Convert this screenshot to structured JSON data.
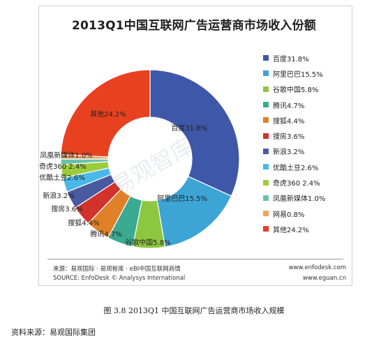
{
  "chart_data": {
    "type": "pie",
    "donut": true,
    "title": "2013Q1中国互联网广告运营商市场收入份额",
    "categories": [
      "百度",
      "阿里巴巴",
      "谷歌中国",
      "腾讯",
      "搜狐",
      "搜房",
      "新浪",
      "优酷土豆",
      "奇虎360",
      "凤凰新媒体",
      "网易",
      "其他"
    ],
    "values": [
      31.8,
      15.5,
      5.8,
      4.7,
      4.4,
      3.6,
      3.2,
      2.6,
      2.4,
      1.0,
      0.8,
      24.2
    ],
    "colors": [
      "#3f57a8",
      "#3da4d6",
      "#8dc63f",
      "#3aaa92",
      "#e0812a",
      "#d1322b",
      "#4a5aa0",
      "#4ab8e8",
      "#9ccc3c",
      "#69c2ad",
      "#f0a35a",
      "#e8411f"
    ],
    "slice_labels": [
      "百度31.8%",
      "阿里巴巴15.5%",
      "谷歌中国5.8%",
      "腾讯4.7%",
      "搜狐4.4%",
      "搜房3.6%",
      "新浪3.2%",
      "优酷土豆2.6%",
      "奇虎360 2.4%",
      "凤凰新媒体1.0%",
      "",
      "其他24.2%"
    ],
    "legend": [
      "百度31.8%",
      "阿里巴巴15.5%",
      "谷歌中国5.8%",
      "腾讯4.7%",
      "搜狐4.4%",
      "搜房3.6%",
      "新浪3.2%",
      "优酷土豆2.6%",
      "奇虎360 2.4%",
      "凤凰新媒体1.0%",
      "网易0.8%",
      "其他24.2%"
    ],
    "legend_position": "right"
  },
  "footer": {
    "source_cn": "来源：易观国际 · 易观智库 · eBI中国互联网商情",
    "source_en": "SOURCE: EnfoDesk © Analysys International",
    "url1": "www.enfodesk.com",
    "url2": "www.eguan.cn"
  },
  "watermark": "易观智库",
  "caption": "图 3.8  2013Q1 中国互联网广告运营商市场收入规模",
  "source_note": "资料来源：易观国际集团"
}
